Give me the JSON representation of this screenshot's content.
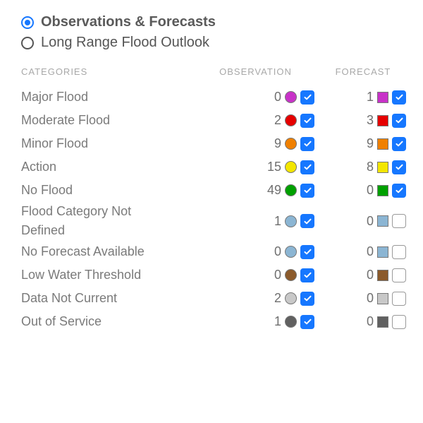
{
  "view_options": {
    "obs_forecasts": {
      "label": "Observations & Forecasts",
      "selected": true
    },
    "long_range": {
      "label": "Long Range Flood Outlook",
      "selected": false
    }
  },
  "headers": {
    "categories": "CATEGORIES",
    "observation": "OBSERVATION",
    "forecast": "FORECAST"
  },
  "colors": {
    "checkbox_checked_bg": "#1677ff",
    "radio_selected": "#1677ff",
    "text_primary": "#6f6f6f",
    "header_text": "#a8a8a8",
    "swatch_border": "#777777"
  },
  "categories": [
    {
      "label": "Major Flood",
      "obs_count": 0,
      "obs_color": "#c832c8",
      "obs_checked": true,
      "fc_count": 1,
      "fc_color": "#c832c8",
      "fc_checked": true
    },
    {
      "label": "Moderate Flood",
      "obs_count": 2,
      "obs_color": "#e60000",
      "obs_checked": true,
      "fc_count": 3,
      "fc_color": "#e60000",
      "fc_checked": true
    },
    {
      "label": "Minor Flood",
      "obs_count": 9,
      "obs_color": "#f08000",
      "obs_checked": true,
      "fc_count": 9,
      "fc_color": "#f08000",
      "fc_checked": true
    },
    {
      "label": "Action",
      "obs_count": 15,
      "obs_color": "#f3e600",
      "obs_checked": true,
      "fc_count": 8,
      "fc_color": "#f3e600",
      "fc_checked": true
    },
    {
      "label": "No Flood",
      "obs_count": 49,
      "obs_color": "#00a000",
      "obs_checked": true,
      "fc_count": 0,
      "fc_color": "#00a000",
      "fc_checked": true
    },
    {
      "label": "Flood Category Not Defined",
      "obs_count": 1,
      "obs_color": "#8bb5d3",
      "obs_checked": true,
      "fc_count": 0,
      "fc_color": "#8bb5d3",
      "fc_checked": false
    },
    {
      "label": "No Forecast Available",
      "obs_count": 0,
      "obs_color": "#8bb5d3",
      "obs_checked": true,
      "fc_count": 0,
      "fc_color": "#8bb5d3",
      "fc_checked": false
    },
    {
      "label": "Low Water Threshold",
      "obs_count": 0,
      "obs_color": "#8b5a2b",
      "obs_checked": true,
      "fc_count": 0,
      "fc_color": "#8b5a2b",
      "fc_checked": false
    },
    {
      "label": "Data Not Current",
      "obs_count": 2,
      "obs_color": "#c8c8c8",
      "obs_checked": true,
      "fc_count": 0,
      "fc_color": "#c8c8c8",
      "fc_checked": false
    },
    {
      "label": "Out of Service",
      "obs_count": 1,
      "obs_color": "#606060",
      "obs_checked": true,
      "fc_count": 0,
      "fc_color": "#606060",
      "fc_checked": false
    }
  ]
}
